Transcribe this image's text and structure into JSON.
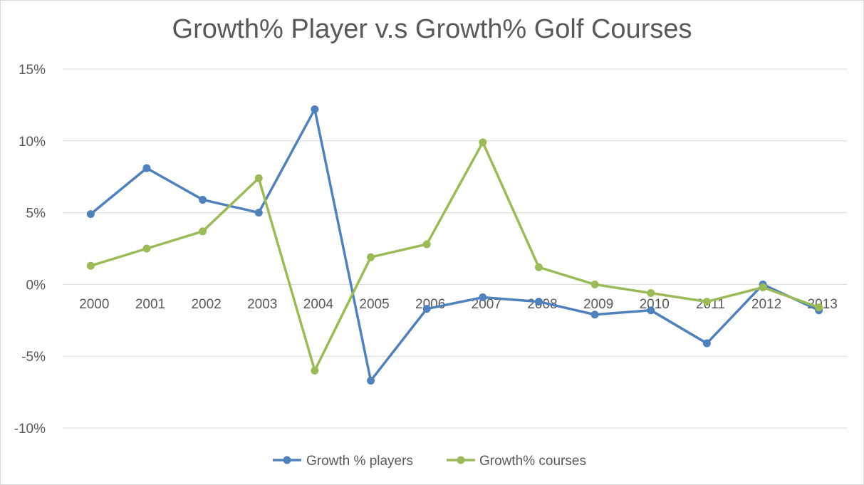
{
  "chart_data": {
    "type": "line",
    "title": "Growth% Player v.s Growth% Golf Courses",
    "xlabel": "",
    "ylabel": "",
    "categories": [
      "2000",
      "2001",
      "2002",
      "2003",
      "2004",
      "2005",
      "2006",
      "2007",
      "2008",
      "2009",
      "2010",
      "2011",
      "2012",
      "2013"
    ],
    "ylim": [
      -10,
      15
    ],
    "yticks": [
      15,
      10,
      5,
      0,
      -5,
      -10
    ],
    "ytick_labels": [
      "15%",
      "10%",
      "5%",
      "0%",
      "-5%",
      "-10%"
    ],
    "grid": true,
    "legend_position": "bottom",
    "series": [
      {
        "name": "Growth % players",
        "color": "#4f81bd",
        "values": [
          4.9,
          8.1,
          5.9,
          5.0,
          12.2,
          -6.7,
          -1.7,
          -0.9,
          -1.2,
          -2.1,
          -1.8,
          -4.1,
          0.0,
          -1.8
        ]
      },
      {
        "name": "Growth% courses",
        "color": "#9bbb59",
        "values": [
          1.3,
          2.5,
          3.7,
          7.4,
          -6.0,
          1.9,
          2.8,
          9.9,
          1.2,
          0.0,
          -0.6,
          -1.2,
          -0.2,
          -1.6
        ]
      }
    ]
  }
}
